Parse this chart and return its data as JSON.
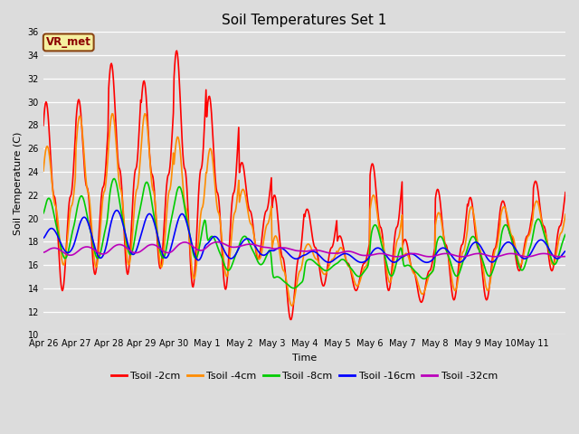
{
  "title": "Soil Temperatures Set 1",
  "xlabel": "Time",
  "ylabel": "Soil Temperature (C)",
  "ylim": [
    10,
    36
  ],
  "yticks": [
    10,
    12,
    14,
    16,
    18,
    20,
    22,
    24,
    26,
    28,
    30,
    32,
    34,
    36
  ],
  "bg_color": "#dcdcdc",
  "annotation_text": "VR_met",
  "annotation_color": "#8B0000",
  "annotation_bg": "#f5f0a0",
  "annotation_border": "#8B4513",
  "legend_labels": [
    "Tsoil -2cm",
    "Tsoil -4cm",
    "Tsoil -8cm",
    "Tsoil -16cm",
    "Tsoil -32cm"
  ],
  "line_colors": [
    "#ff0000",
    "#ff8c00",
    "#00cc00",
    "#0000ff",
    "#bb00bb"
  ],
  "line_width": 1.2,
  "xtick_labels": [
    "Apr 26",
    "Apr 27",
    "Apr 28",
    "Apr 29",
    "Apr 30",
    "May 1",
    "May 2",
    "May 3",
    "May 4",
    "May 5",
    "May 6",
    "May 7",
    "May 8",
    "May 9",
    "May 10",
    "May 11"
  ],
  "n_days": 16,
  "pts_per_day": 48,
  "title_fontsize": 11,
  "tick_fontsize": 7,
  "label_fontsize": 8,
  "legend_fontsize": 8
}
